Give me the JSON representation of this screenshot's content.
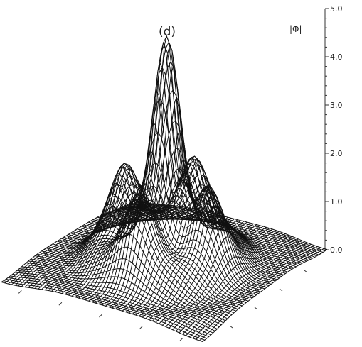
{
  "chart_data": {
    "type": "surface3d",
    "panel_label": "(d)",
    "zlabel": "|Φ|",
    "z_ticks": [
      "0.0",
      "1.0",
      "2.0",
      "3.0",
      "4.0",
      "5.0"
    ],
    "z_range": [
      0,
      5
    ],
    "surface": {
      "peak_height": 4.8,
      "satellite_peaks": 4,
      "satellite_height": 1.7,
      "mesh_color": "#111111",
      "description_shape": "central sharp peak with four side lobes on a flat base"
    }
  },
  "colors": {
    "background": "#ffffff",
    "mesh": "#111111",
    "axis": "#333333"
  }
}
